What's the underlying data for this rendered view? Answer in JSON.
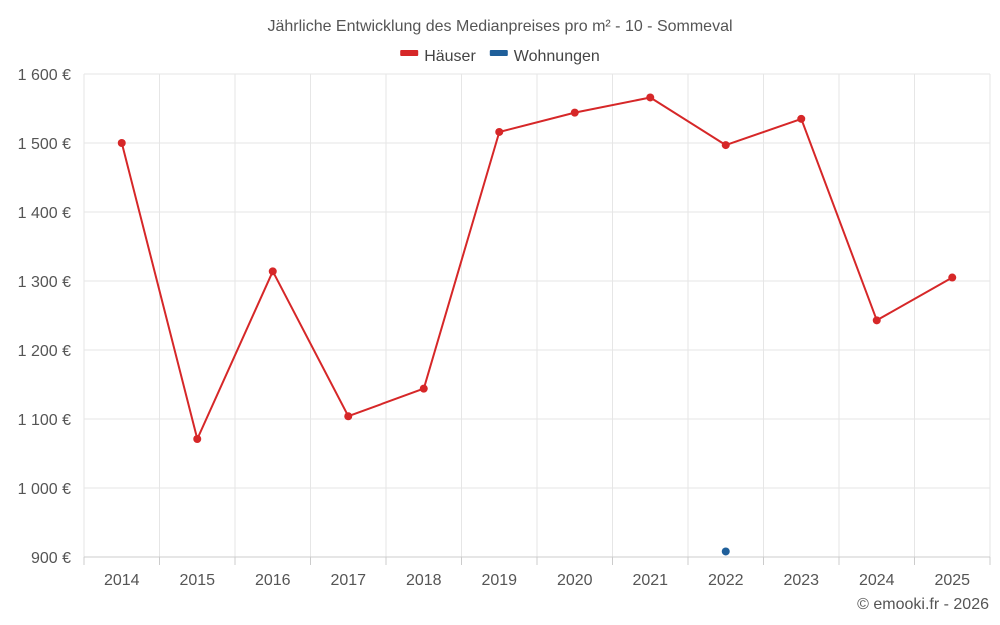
{
  "chart_data": {
    "type": "line",
    "title": "Jährliche Entwicklung des Medianpreises pro m² - 10 - Sommeval",
    "categories": [
      "2014",
      "2015",
      "2016",
      "2017",
      "2018",
      "2019",
      "2020",
      "2021",
      "2022",
      "2023",
      "2024",
      "2025"
    ],
    "series": [
      {
        "name": "Häuser",
        "color": "#d62728",
        "values": [
          1500,
          1071,
          1314,
          1104,
          1144,
          1516,
          1544,
          1566,
          1497,
          1535,
          1243,
          1305
        ]
      },
      {
        "name": "Wohnungen",
        "color": "#1f5f9a",
        "values": [
          null,
          null,
          null,
          null,
          null,
          null,
          null,
          null,
          908,
          null,
          null,
          null
        ]
      }
    ],
    "ylim": [
      900,
      1600
    ],
    "yticks": [
      900,
      1000,
      1100,
      1200,
      1300,
      1400,
      1500,
      1600
    ],
    "ytick_labels": [
      "900 €",
      "1 000 €",
      "1 100 €",
      "1 200 €",
      "1 300 €",
      "1 400 €",
      "1 500 €",
      "1 600 €"
    ],
    "xlabel": "",
    "ylabel": "",
    "legend_position": "top-center",
    "grid": true
  },
  "credit": "© emooki.fr - 2026"
}
